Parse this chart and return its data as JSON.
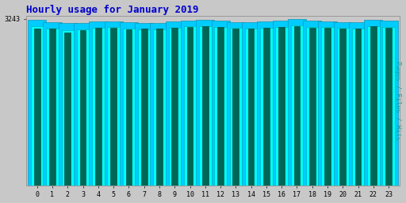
{
  "title": "Hourly usage for January 2019",
  "title_color": "#0000cc",
  "title_fontsize": 9,
  "ylabel_right": "Pages / Files / Hits",
  "ylabel_right_color": "#00aaaa",
  "background_color": "#c8c8c8",
  "plot_bg_color": "#c8c8c8",
  "hours": [
    0,
    1,
    2,
    3,
    4,
    5,
    6,
    7,
    8,
    9,
    10,
    11,
    12,
    13,
    14,
    15,
    16,
    17,
    18,
    19,
    20,
    21,
    22,
    23
  ],
  "hits": [
    3220,
    3180,
    3160,
    3170,
    3195,
    3200,
    3175,
    3165,
    3160,
    3195,
    3215,
    3220,
    3210,
    3185,
    3175,
    3200,
    3210,
    3243,
    3205,
    3200,
    3185,
    3180,
    3220,
    3205
  ],
  "files": [
    3100,
    3060,
    3030,
    3035,
    3070,
    3080,
    3055,
    3045,
    3040,
    3070,
    3095,
    3100,
    3085,
    3065,
    3050,
    3075,
    3090,
    3120,
    3085,
    3080,
    3065,
    3060,
    3100,
    3085
  ],
  "pages": [
    3050,
    3060,
    2980,
    3030,
    3065,
    3070,
    3045,
    3055,
    3060,
    3070,
    3085,
    3095,
    3080,
    3055,
    3050,
    3070,
    3080,
    3110,
    3075,
    3070,
    3060,
    3055,
    3095,
    3075
  ],
  "hits_color": "#00ccff",
  "files_color": "#00ffff",
  "pages_color": "#006655",
  "bar_width": 0.4,
  "ymax": 3243,
  "ymin": 2800,
  "font_family": "monospace"
}
